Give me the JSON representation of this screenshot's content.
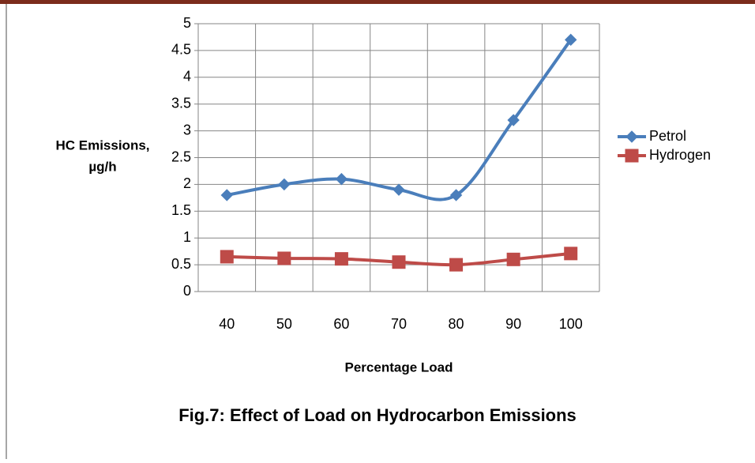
{
  "chart_data": {
    "type": "line",
    "caption": "Fig.7: Effect of Load on Hydrocarbon Emissions",
    "xlabel": "Percentage Load",
    "ylabel": [
      "HC Emissions,",
      "µg/h"
    ],
    "categories": [
      "40",
      "50",
      "60",
      "70",
      "80",
      "90",
      "100"
    ],
    "series": [
      {
        "name": "Petrol",
        "color": "#4a7ebb",
        "marker": "diamond",
        "values": [
          1.8,
          2.0,
          2.1,
          1.9,
          1.8,
          3.2,
          4.7
        ]
      },
      {
        "name": "Hydrogen",
        "color": "#be4b48",
        "marker": "square",
        "values": [
          0.65,
          0.62,
          0.61,
          0.55,
          0.5,
          0.6,
          0.71
        ]
      }
    ],
    "ylim": [
      0,
      5
    ],
    "yticks": [
      0,
      0.5,
      1,
      1.5,
      2,
      2.5,
      3,
      3.5,
      4,
      4.5,
      5
    ],
    "grid": true,
    "smooth": true,
    "legend": "right"
  }
}
